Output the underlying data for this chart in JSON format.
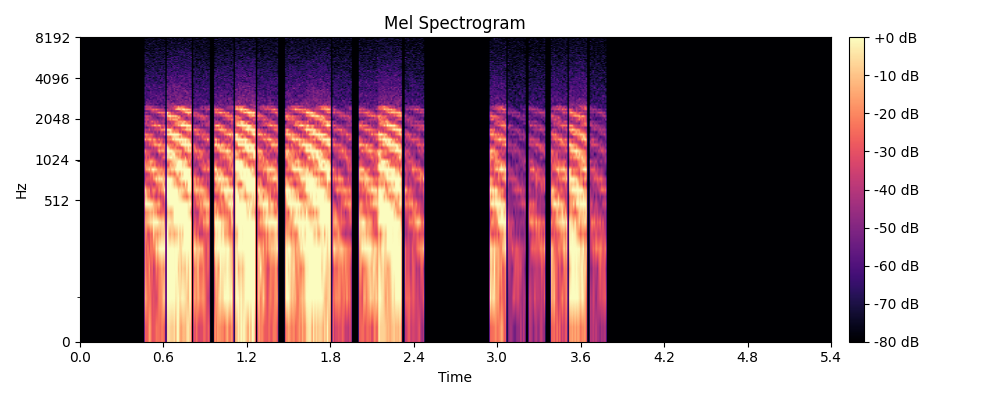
{
  "title": "Mel Spectrogram",
  "xlabel": "Time",
  "ylabel": "Hz",
  "colorbar_ticks": [
    0,
    -10,
    -20,
    -30,
    -40,
    -50,
    -60,
    -70,
    -80
  ],
  "colorbar_labels": [
    "+0 dB",
    "-10 dB",
    "-20 dB",
    "-30 dB",
    "-40 dB",
    "-50 dB",
    "-60 dB",
    "-70 dB",
    "-80 dB"
  ],
  "cmap": "magma",
  "vmin": -80,
  "vmax": 0,
  "time_max": 5.4,
  "freq_max": 8192,
  "xticks": [
    0,
    0.6,
    1.2,
    1.8,
    2.4,
    3.0,
    3.6,
    4.2,
    4.8,
    5.4
  ],
  "yticks": [
    0,
    512,
    1024,
    2048,
    4096,
    8192
  ],
  "ytick_labels": [
    "0",
    "512",
    "1024",
    "2048",
    "4096",
    "8192"
  ],
  "background_color": "#000000",
  "figure_background": "#ffffff",
  "figsize": [
    10.0,
    4.0
  ],
  "dpi": 100,
  "n_mels": 128,
  "n_time": 540,
  "segments": [
    {
      "t0": 0.47,
      "t1": 0.62,
      "amp": 0.68
    },
    {
      "t0": 0.63,
      "t1": 0.8,
      "amp": 0.92
    },
    {
      "t0": 0.82,
      "t1": 0.94,
      "amp": 0.62
    },
    {
      "t0": 0.97,
      "t1": 1.1,
      "amp": 0.75
    },
    {
      "t0": 1.11,
      "t1": 1.27,
      "amp": 0.95
    },
    {
      "t0": 1.28,
      "t1": 1.43,
      "amp": 0.7
    },
    {
      "t0": 1.48,
      "t1": 1.62,
      "amp": 0.78
    },
    {
      "t0": 1.63,
      "t1": 1.8,
      "amp": 0.9
    },
    {
      "t0": 1.81,
      "t1": 1.95,
      "amp": 0.58
    },
    {
      "t0": 2.0,
      "t1": 2.14,
      "amp": 0.68
    },
    {
      "t0": 2.15,
      "t1": 2.32,
      "amp": 0.88
    },
    {
      "t0": 2.33,
      "t1": 2.47,
      "amp": 0.55
    },
    {
      "t0": 2.94,
      "t1": 3.07,
      "amp": 0.72
    },
    {
      "t0": 3.08,
      "t1": 3.2,
      "amp": 0.42
    },
    {
      "t0": 3.22,
      "t1": 3.34,
      "amp": 0.5
    },
    {
      "t0": 3.38,
      "t1": 3.51,
      "amp": 0.65
    },
    {
      "t0": 3.52,
      "t1": 3.65,
      "amp": 0.8
    },
    {
      "t0": 3.66,
      "t1": 3.78,
      "amp": 0.48
    }
  ]
}
